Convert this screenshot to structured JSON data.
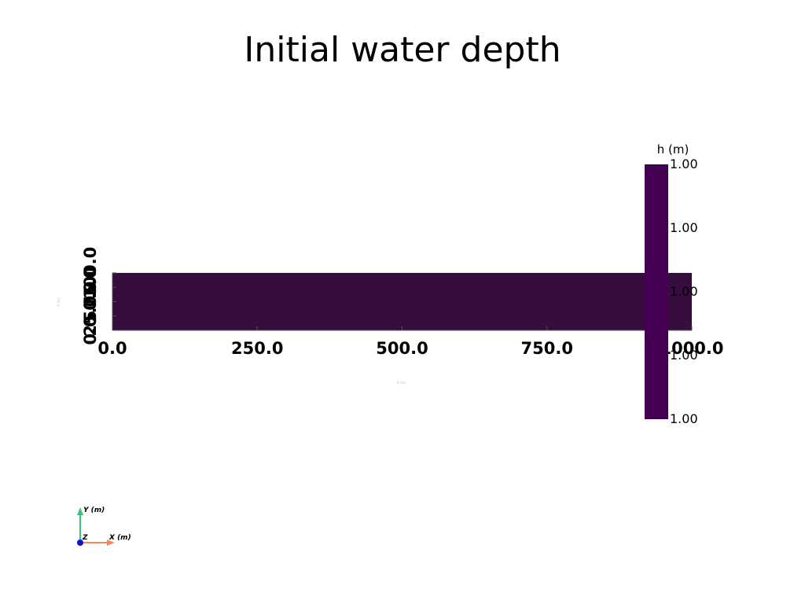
{
  "chart_data": {
    "type": "heatmap",
    "title": "Initial water depth",
    "xlabel": "X (m)",
    "ylabel": "Y (m)",
    "xlim": [
      0.0,
      1000.0
    ],
    "ylim": [
      0.0,
      100.0
    ],
    "x_ticks": [
      "0.0",
      "250.0",
      "500.0",
      "750.0",
      "1000.0"
    ],
    "x_tick_values": [
      0,
      250,
      500,
      750,
      1000
    ],
    "y_ticks": [
      "0.0",
      "25.0",
      "50.0",
      "75.0",
      "100.0"
    ],
    "y_tick_values": [
      0,
      25,
      50,
      75,
      100
    ],
    "field": {
      "name": "h (m)",
      "value": 1.0,
      "color": "#360d3e"
    },
    "colorbar": {
      "title": "h (m)",
      "labels": [
        "1.00",
        "1.00",
        "1.00",
        "1.00",
        "1.00"
      ],
      "color": "#440154",
      "placement": "right"
    },
    "grid": false
  },
  "orientation_widget": {
    "y_label": "Y (m)",
    "x_label": "X (m)",
    "z_label": "Z",
    "colors": {
      "x": "#f08a5d",
      "y": "#3fbf7f",
      "z": "#1010d0"
    }
  },
  "axes_faint_labels": {
    "y": "Y (m)",
    "x": "X (m)"
  }
}
